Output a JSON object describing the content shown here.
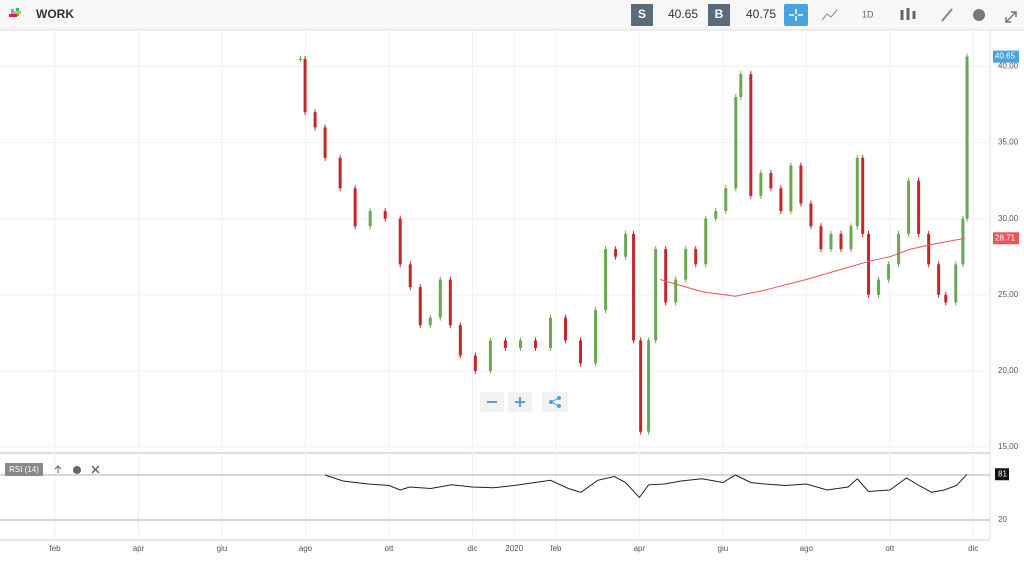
{
  "header": {
    "symbol": "WORK",
    "sell_label": "S",
    "sell_price": "40.65",
    "buy_label": "B",
    "buy_price": "40.75",
    "interval": "1D"
  },
  "chart_data": {
    "type": "candlestick",
    "x": [
      6.88,
      6.99,
      7.23,
      7.47,
      7.83,
      8.19,
      8.55,
      8.91,
      9.27,
      9.51,
      9.75,
      9.99,
      10.23,
      10.47,
      10.71,
      11.07,
      11.43,
      11.79,
      12.15,
      12.51,
      12.87,
      13.23,
      13.59,
      13.95,
      14.19,
      14.43,
      14.67,
      14.86,
      15.03,
      15.22,
      15.39,
      15.63,
      15.87,
      16.11,
      16.35,
      16.59,
      16.83,
      17.07,
      17.31,
      17.43,
      17.67,
      17.91,
      18.15,
      18.39,
      18.63,
      18.87,
      19.11,
      19.35,
      19.59,
      19.83,
      20.07,
      20.22,
      20.35,
      20.49,
      20.73,
      20.97,
      21.21,
      21.45,
      21.69,
      21.93,
      22.17,
      22.34,
      22.58,
      22.75,
      22.85
    ],
    "values": [
      40.5,
      37,
      36,
      34,
      32,
      29.5,
      30.5,
      30,
      27,
      25.5,
      23,
      23.5,
      26,
      23,
      21,
      20,
      22,
      21.5,
      22,
      21.5,
      23.5,
      22,
      20.5,
      24,
      28,
      27.5,
      29,
      22,
      16,
      22,
      28,
      24.5,
      26,
      28,
      27,
      30,
      30.5,
      32,
      38,
      39.5,
      31.5,
      33,
      32,
      30.5,
      33.5,
      31,
      29.5,
      28,
      29,
      28,
      29.5,
      34,
      29,
      25,
      26,
      27,
      29,
      32.5,
      29,
      27,
      25,
      24.5,
      27,
      30,
      40.65
    ],
    "xlim": [
      0,
      23.4
    ],
    "xticks": [
      {
        "value": 1,
        "label": "feb"
      },
      {
        "value": 3,
        "label": "apr"
      },
      {
        "value": 5,
        "label": "giu"
      },
      {
        "value": 7,
        "label": "ago"
      },
      {
        "value": 9,
        "label": "ott"
      },
      {
        "value": 11,
        "label": "dic"
      },
      {
        "value": 12,
        "label": "2020"
      },
      {
        "value": 13,
        "label": "feb"
      },
      {
        "value": 15,
        "label": "apr"
      },
      {
        "value": 17,
        "label": "giu"
      },
      {
        "value": 19,
        "label": "ago"
      },
      {
        "value": 21,
        "label": "ott"
      },
      {
        "value": 23,
        "label": "dic"
      }
    ],
    "ylim": [
      14.6,
      42.4
    ],
    "yticks": [
      {
        "value": 15,
        "label": "15,00"
      },
      {
        "value": 20,
        "label": "20,00"
      },
      {
        "value": 25,
        "label": "25,00"
      },
      {
        "value": 30,
        "label": "30,00"
      },
      {
        "value": 35,
        "label": "35,00"
      },
      {
        "value": 40,
        "label": "40,00"
      }
    ],
    "up_color": "#6aa84f",
    "down_color": "#c0282d",
    "last_color": "#4aa3df",
    "ma": {
      "color": "#e8555a",
      "x": [
        15.5,
        16.5,
        17.3,
        18,
        19,
        20,
        20.5,
        21,
        21.5,
        22,
        22.8
      ],
      "values": [
        26,
        25.2,
        24.9,
        25.3,
        26,
        26.8,
        27.2,
        27.5,
        28,
        28.3,
        28.71
      ]
    }
  },
  "rsi": {
    "label": "RSI (14)",
    "type": "line",
    "color": "#222222",
    "x": [
      7.47,
      7.9,
      8.5,
      9,
      9.27,
      9.5,
      10,
      10.5,
      11,
      11.5,
      12,
      12.5,
      12.87,
      13.3,
      13.6,
      14,
      14.4,
      14.67,
      15,
      15.22,
      15.6,
      16,
      16.5,
      17,
      17.3,
      17.67,
      18,
      18.5,
      19,
      19.5,
      20,
      20.22,
      20.49,
      21,
      21.4,
      21.7,
      22,
      22.3,
      22.6,
      22.85
    ],
    "values": [
      80,
      72,
      68,
      66,
      60,
      64,
      62,
      67,
      64,
      63,
      66,
      70,
      73,
      62,
      57,
      73,
      78,
      70,
      50,
      67,
      68,
      72,
      75,
      70,
      80,
      70,
      68,
      66,
      68,
      60,
      64,
      75,
      58,
      60,
      76,
      66,
      57,
      60,
      66,
      81
    ],
    "ylim": [
      0,
      100
    ],
    "yticks": [
      20
    ],
    "bands": [
      20,
      80
    ]
  }
}
